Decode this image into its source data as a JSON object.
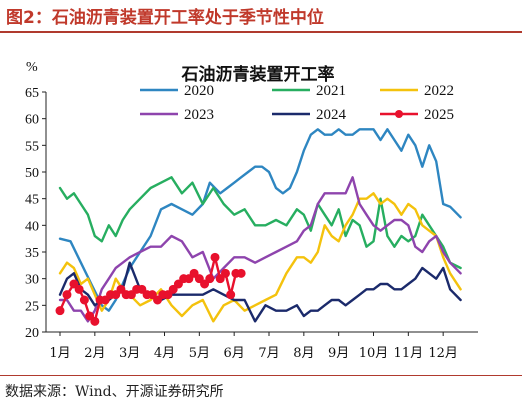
{
  "figure": {
    "title": "图2：石油沥青装置开工率处于季节性中位",
    "source": "数据来源：Wind、开源证券研究所"
  },
  "chart_data": {
    "type": "line",
    "title": "石油沥青装置开工率",
    "ylabel": "%",
    "ylim": [
      20,
      65
    ],
    "yticks": [
      20,
      25,
      30,
      35,
      40,
      45,
      50,
      55,
      60,
      65
    ],
    "xlim": [
      1,
      13
    ],
    "xticks": [
      1,
      2,
      3,
      4,
      5,
      6,
      7,
      8,
      9,
      10,
      11,
      12
    ],
    "xtick_labels": [
      "1月",
      "2月",
      "3月",
      "4月",
      "5月",
      "6月",
      "7月",
      "8月",
      "9月",
      "10月",
      "11月",
      "12月"
    ],
    "grid": false,
    "legend_position": "top",
    "series": [
      {
        "name": "2020",
        "color": "#2e86c1",
        "marker": false,
        "x": [
          1,
          1.3,
          1.6,
          1.9,
          2.2,
          2.4,
          2.6,
          2.8,
          3.0,
          3.3,
          3.6,
          3.9,
          4.2,
          4.5,
          4.8,
          5.1,
          5.3,
          5.6,
          5.8,
          6.0,
          6.2,
          6.4,
          6.6,
          6.8,
          7.0,
          7.2,
          7.4,
          7.6,
          7.8,
          8.0,
          8.2,
          8.4,
          8.6,
          8.8,
          9.0,
          9.2,
          9.4,
          9.6,
          9.8,
          10.0,
          10.2,
          10.4,
          10.6,
          10.8,
          11.0,
          11.2,
          11.4,
          11.6,
          11.8,
          12.0,
          12.2,
          12.5
        ],
        "y": [
          37.5,
          37,
          33,
          29,
          25,
          24,
          26,
          29,
          32,
          35,
          38,
          43,
          44,
          43,
          42,
          44,
          48,
          46,
          47,
          48,
          49,
          50,
          51,
          51,
          50,
          47,
          46,
          47,
          50,
          54,
          57,
          58,
          57,
          57,
          58,
          57,
          57,
          58,
          58,
          58,
          56,
          58,
          56,
          54,
          57,
          55,
          51,
          55,
          52,
          44,
          43.5,
          41.5
        ]
      },
      {
        "name": "2021",
        "color": "#27ae60",
        "marker": false,
        "x": [
          1,
          1.2,
          1.4,
          1.6,
          1.8,
          2.0,
          2.2,
          2.4,
          2.6,
          2.8,
          3.0,
          3.3,
          3.6,
          3.9,
          4.2,
          4.5,
          4.8,
          5.1,
          5.4,
          5.7,
          6.0,
          6.3,
          6.6,
          6.9,
          7.2,
          7.5,
          7.8,
          8.0,
          8.2,
          8.4,
          8.6,
          8.8,
          9.0,
          9.2,
          9.4,
          9.6,
          9.8,
          10.0,
          10.2,
          10.4,
          10.6,
          10.8,
          11.0,
          11.2,
          11.4,
          11.6,
          11.8,
          12.0,
          12.2,
          12.5
        ],
        "y": [
          47,
          45,
          46,
          44,
          42,
          38,
          37,
          40,
          38,
          41,
          43,
          45,
          47,
          48,
          49,
          46,
          48,
          44,
          47,
          44,
          42,
          43,
          40,
          40,
          41,
          40,
          43,
          42,
          39,
          44,
          42,
          40,
          43,
          38,
          41,
          40,
          36,
          37,
          45,
          38,
          36,
          38,
          37,
          38,
          42,
          40,
          38,
          36,
          33,
          32
        ]
      },
      {
        "name": "2022",
        "color": "#f4c20d",
        "marker": false,
        "x": [
          1,
          1.2,
          1.4,
          1.6,
          1.8,
          2.0,
          2.2,
          2.4,
          2.6,
          2.8,
          3.0,
          3.3,
          3.6,
          3.9,
          4.2,
          4.5,
          4.8,
          5.1,
          5.4,
          5.7,
          6.0,
          6.3,
          6.6,
          6.9,
          7.2,
          7.5,
          7.8,
          8.0,
          8.2,
          8.4,
          8.6,
          8.8,
          9.0,
          9.2,
          9.4,
          9.6,
          9.8,
          10.0,
          10.2,
          10.4,
          10.6,
          10.8,
          11.0,
          11.2,
          11.4,
          11.6,
          11.8,
          12.0,
          12.2,
          12.5
        ],
        "y": [
          31,
          33,
          32,
          29,
          30,
          27,
          24,
          26,
          30,
          28,
          27,
          25,
          26,
          28,
          25,
          23,
          25,
          26,
          22,
          25,
          26,
          24,
          25,
          26,
          27,
          31,
          34,
          34,
          33,
          35,
          40,
          38,
          37,
          40,
          42,
          45,
          45,
          46,
          44,
          45,
          44,
          42,
          44,
          43,
          40,
          39,
          38,
          34,
          31,
          28
        ]
      },
      {
        "name": "2023",
        "color": "#8e44ad",
        "marker": false,
        "x": [
          1,
          1.2,
          1.4,
          1.6,
          1.8,
          2.0,
          2.2,
          2.4,
          2.6,
          2.8,
          3.0,
          3.3,
          3.6,
          3.9,
          4.2,
          4.5,
          4.8,
          5.1,
          5.4,
          5.7,
          6.0,
          6.3,
          6.6,
          6.9,
          7.2,
          7.5,
          7.8,
          8.0,
          8.2,
          8.4,
          8.6,
          8.8,
          9.0,
          9.2,
          9.4,
          9.6,
          9.8,
          10.0,
          10.2,
          10.4,
          10.6,
          10.8,
          11.0,
          11.2,
          11.4,
          11.6,
          11.8,
          12.0,
          12.2,
          12.5
        ],
        "y": [
          26,
          26,
          24,
          24,
          22,
          24,
          28,
          30,
          32,
          33,
          34,
          35,
          36,
          36,
          38,
          37,
          34,
          35,
          30,
          32,
          34,
          34,
          33,
          34,
          35,
          36,
          37,
          39,
          40,
          44,
          46,
          46,
          46,
          46,
          49,
          44,
          42,
          40,
          39,
          40,
          41,
          41,
          40,
          36,
          35,
          37,
          38,
          35,
          33,
          31
        ]
      },
      {
        "name": "2024",
        "color": "#1b2a6b",
        "marker": false,
        "x": [
          1,
          1.2,
          1.4,
          1.6,
          1.8,
          2.0,
          2.2,
          2.4,
          2.6,
          2.8,
          3.0,
          3.3,
          3.6,
          3.9,
          4.2,
          4.5,
          4.8,
          5.1,
          5.4,
          5.7,
          6.0,
          6.3,
          6.6,
          6.9,
          7.2,
          7.5,
          7.8,
          8.0,
          8.2,
          8.4,
          8.6,
          8.8,
          9.0,
          9.2,
          9.4,
          9.6,
          9.8,
          10.0,
          10.2,
          10.4,
          10.6,
          10.8,
          11.0,
          11.2,
          11.4,
          11.6,
          11.8,
          12.0,
          12.2,
          12.5
        ],
        "y": [
          27,
          30,
          31,
          28,
          27,
          25,
          26,
          26,
          27,
          28,
          33,
          28,
          27,
          26,
          27,
          27,
          27,
          27,
          28,
          27,
          26,
          26,
          22,
          25,
          24,
          24,
          25,
          23,
          24,
          24,
          25,
          26,
          26,
          25,
          26,
          27,
          28,
          28,
          29,
          29,
          28,
          28,
          29,
          30,
          32,
          31,
          30,
          32,
          28,
          26
        ]
      },
      {
        "name": "2025",
        "color": "#e8112d",
        "marker": true,
        "x": [
          1,
          1.2,
          1.4,
          1.55,
          1.7,
          1.85,
          2.0,
          2.15,
          2.3,
          2.45,
          2.6,
          2.75,
          2.9,
          3.05,
          3.2,
          3.35,
          3.5,
          3.65,
          3.8,
          3.95,
          4.1,
          4.25,
          4.4,
          4.55,
          4.7,
          4.85,
          5.0,
          5.15,
          5.3,
          5.45,
          5.6,
          5.75,
          5.9,
          6.05,
          6.2
        ],
        "y": [
          24,
          27,
          29,
          28,
          26,
          23,
          22,
          26,
          26,
          27,
          27,
          28,
          27,
          27,
          28,
          28,
          27,
          27,
          26,
          27,
          27,
          28,
          29,
          30,
          30,
          31,
          30,
          29,
          30,
          34,
          30,
          31,
          27,
          31,
          31
        ]
      }
    ]
  }
}
